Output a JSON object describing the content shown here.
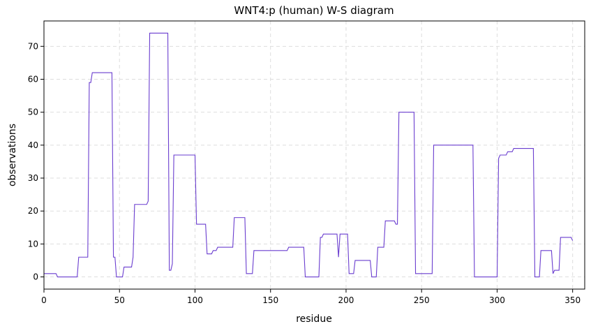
{
  "chart_data": {
    "type": "line",
    "title": "WNT4:p (human) W-S diagram",
    "x_label": "residue",
    "y_label": "observations",
    "series": [
      {
        "color": "#6a3dcf",
        "x": [
          0,
          8,
          9,
          22,
          23,
          29,
          30,
          31,
          32,
          45,
          46,
          47,
          48,
          52,
          53,
          58,
          59,
          60,
          68,
          69,
          70,
          82,
          83,
          84,
          85,
          86,
          100,
          101,
          107,
          108,
          111,
          112,
          114,
          115,
          125,
          126,
          133,
          134,
          138,
          139,
          161,
          162,
          172,
          173,
          182,
          183,
          184,
          185,
          194,
          195,
          196,
          201,
          202,
          205,
          206,
          216,
          217,
          220,
          221,
          225,
          226,
          232,
          233,
          234,
          235,
          245,
          246,
          257,
          258,
          284,
          285,
          300,
          301,
          302,
          306,
          307,
          310,
          311,
          324,
          325,
          328,
          329,
          336,
          337,
          338,
          341,
          342,
          349,
          350
        ],
        "values": [
          1,
          1,
          0,
          0,
          6,
          6,
          59,
          59,
          62,
          62,
          6,
          6,
          0,
          0,
          3,
          3,
          6,
          22,
          22,
          23,
          74,
          74,
          2,
          2,
          4,
          37,
          37,
          16,
          16,
          7,
          7,
          8,
          8,
          9,
          9,
          18,
          18,
          1,
          1,
          8,
          8,
          9,
          9,
          0,
          0,
          12,
          12,
          13,
          13,
          6,
          13,
          13,
          1,
          1,
          5,
          5,
          0,
          0,
          9,
          9,
          17,
          17,
          16,
          16,
          50,
          50,
          1,
          1,
          40,
          40,
          0,
          0,
          36,
          37,
          37,
          38,
          38,
          39,
          39,
          0,
          0,
          8,
          8,
          1,
          2,
          2,
          12,
          12,
          11
        ]
      }
    ],
    "xlim": [
      0,
      358
    ],
    "ylim": [
      -3.7,
      77.7
    ],
    "xticks": [
      0,
      50,
      100,
      150,
      200,
      250,
      300,
      350
    ],
    "yticks": [
      0,
      10,
      20,
      30,
      40,
      50,
      60,
      70
    ],
    "grid": true
  }
}
